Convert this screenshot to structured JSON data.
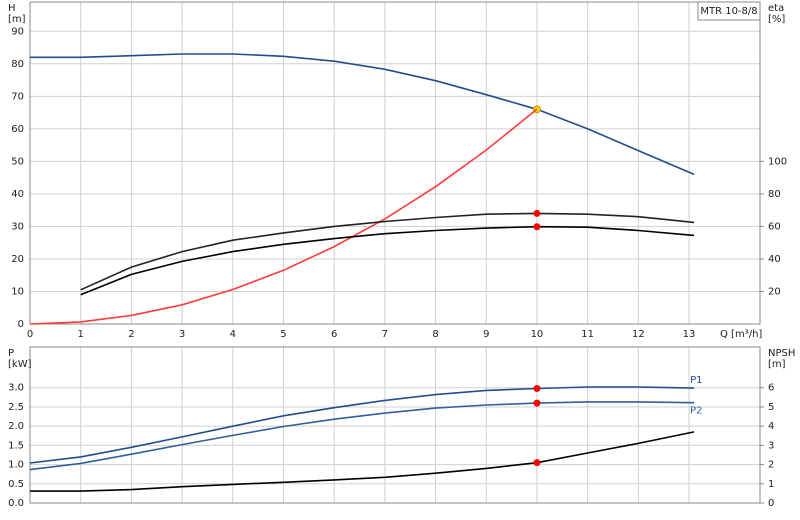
{
  "chart_data": [
    {
      "type": "line",
      "annotation": "MTR 10-8/8",
      "ylabel": "H",
      "yunit": "[m]",
      "y2label": "eta",
      "y2unit": "[%]",
      "xlabel": "Q [m³/h]",
      "x": [
        0,
        1,
        2,
        3,
        4,
        5,
        6,
        7,
        8,
        9,
        10,
        11,
        12,
        13.1
      ],
      "xlim": [
        0,
        14.4
      ],
      "xticks": [
        0,
        1,
        2,
        3,
        4,
        5,
        6,
        7,
        8,
        9,
        10,
        11,
        12,
        13
      ],
      "ylim": [
        0,
        99
      ],
      "yticks": [
        0,
        10,
        20,
        30,
        40,
        50,
        60,
        70,
        80,
        90
      ],
      "y2lim": [
        0,
        198
      ],
      "y2ticks": [
        20,
        40,
        60,
        80,
        100
      ],
      "grid": true,
      "duty_q": 10,
      "series": [
        {
          "color": "#1f4e8c",
          "marker_color": "#ffd400",
          "values": [
            82,
            82,
            82.5,
            83,
            83,
            82.3,
            80.8,
            78.3,
            74.8,
            70.5,
            66,
            60,
            53.3,
            46
          ]
        },
        {
          "color": "#ff3b3b",
          "values": [
            0,
            0.66,
            2.64,
            5.9,
            10.6,
            16.5,
            23.8,
            32.3,
            42.2,
            53.5,
            66,
            null,
            null,
            null
          ]
        },
        {
          "color": "#222222",
          "axis": "y2",
          "marker_color": "#ff0000",
          "values": [
            null,
            21,
            35,
            44.5,
            51.5,
            56,
            60,
            63,
            65.5,
            67.5,
            68,
            67.5,
            66,
            62.5
          ]
        },
        {
          "color": "#000000",
          "axis": "y2",
          "marker_color": "#ff0000",
          "values": [
            null,
            18,
            30.5,
            38.5,
            44.5,
            49,
            52.5,
            55.5,
            57.5,
            59,
            59.8,
            59.5,
            57.5,
            54.5
          ]
        }
      ]
    },
    {
      "type": "line",
      "ylabel": "P",
      "yunit": "[kW]",
      "y2label": "NPSH",
      "y2unit": "[m]",
      "x": [
        0,
        1,
        2,
        3,
        4,
        5,
        6,
        7,
        8,
        9,
        10,
        11,
        12,
        13.1
      ],
      "xlim": [
        0,
        14.4
      ],
      "ylim": [
        0,
        4.06
      ],
      "yticks": [
        {
          "value": 0,
          "label": "0.0"
        },
        0.5,
        {
          "value": 1,
          "label": "1.0"
        },
        1.5,
        {
          "value": 2,
          "label": "2.0"
        },
        2.5,
        {
          "value": 3,
          "label": "3.0"
        }
      ],
      "y2lim": [
        0,
        8.12
      ],
      "y2ticks": [
        0,
        1,
        2,
        3,
        4,
        5,
        6
      ],
      "grid": true,
      "duty_q": 10,
      "series": [
        {
          "name": "P1",
          "color": "#1f4e8c",
          "marker_color": "#ff0000",
          "values": [
            1.04,
            1.2,
            1.45,
            1.72,
            2.0,
            2.27,
            2.48,
            2.67,
            2.82,
            2.93,
            2.98,
            3.02,
            3.02,
            2.99
          ]
        },
        {
          "name": "P2",
          "color": "#2f5f9c",
          "marker_color": "#ff0000",
          "values": [
            0.87,
            1.03,
            1.27,
            1.52,
            1.76,
            1.99,
            2.18,
            2.34,
            2.47,
            2.55,
            2.6,
            2.63,
            2.63,
            2.61
          ]
        },
        {
          "color": "#000000",
          "axis": "y2",
          "marker_color": "#ff0000",
          "values": [
            0.62,
            0.62,
            0.7,
            0.85,
            0.97,
            1.08,
            1.2,
            1.34,
            1.55,
            1.8,
            2.1,
            2.6,
            3.1,
            3.7
          ]
        }
      ]
    }
  ]
}
